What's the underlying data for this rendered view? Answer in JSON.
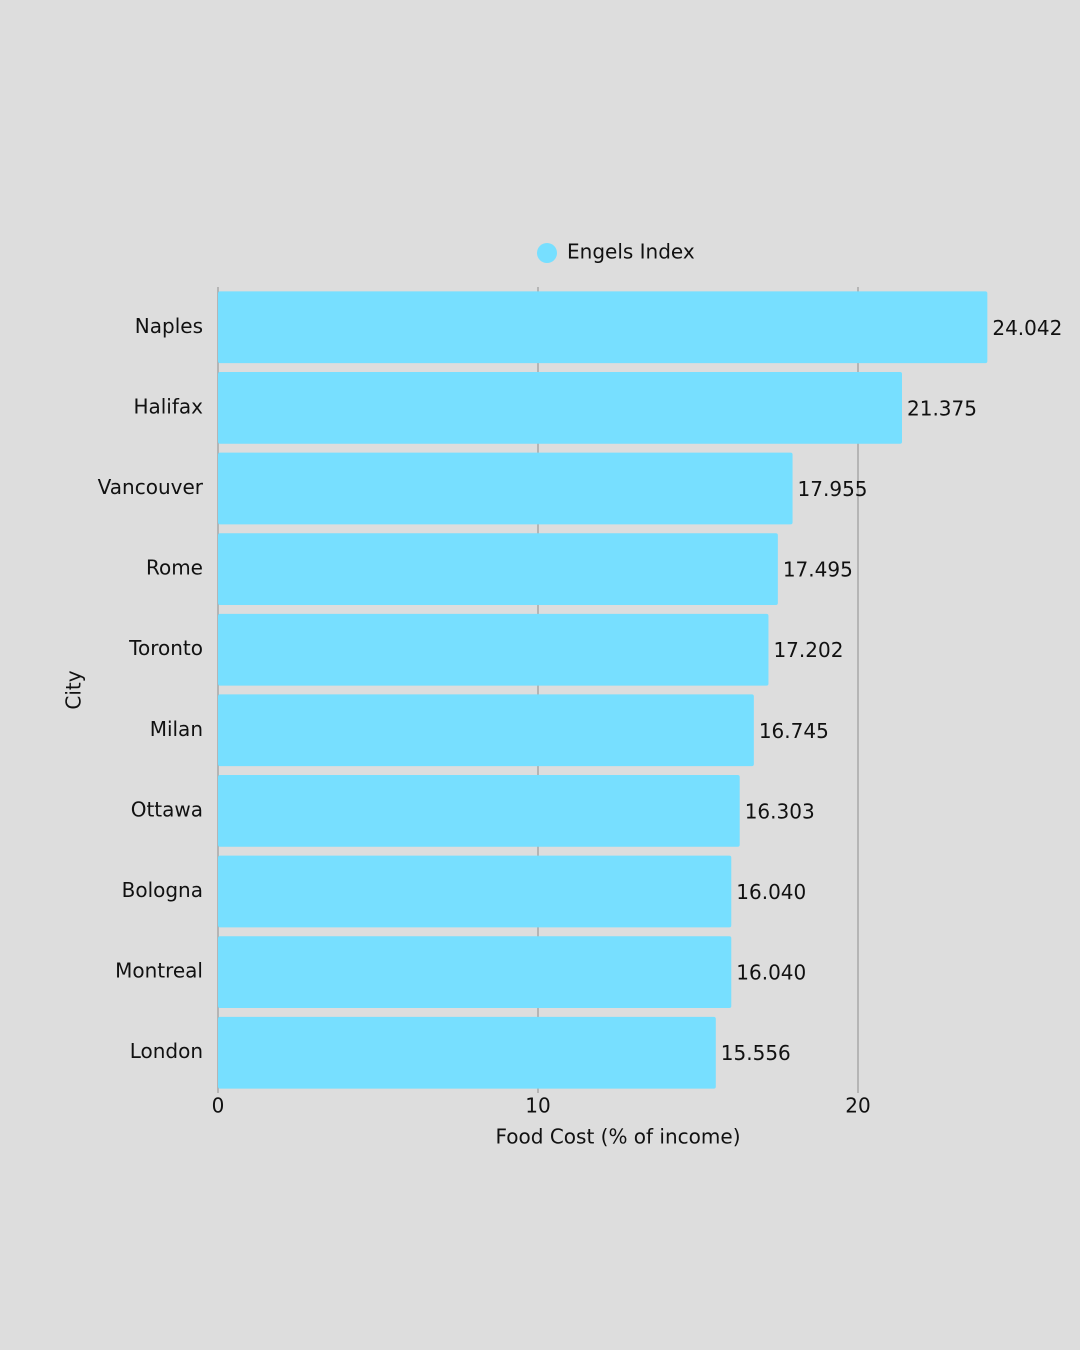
{
  "chart_data": {
    "type": "bar",
    "orientation": "horizontal",
    "x_label": "Food Cost (% of income)",
    "y_label": "City",
    "categories": [
      "Naples",
      "Halifax",
      "Vancouver",
      "Rome",
      "Toronto",
      "Milan",
      "Ottawa",
      "Bologna",
      "Montreal",
      "London"
    ],
    "series": [
      {
        "name": "Engels Index",
        "color": "#77dfff",
        "values": [
          24.042,
          21.375,
          17.955,
          17.495,
          17.202,
          16.745,
          16.303,
          16.04,
          16.04,
          15.556
        ],
        "value_labels": [
          "24.042",
          "21.375",
          "17.955",
          "17.495",
          "17.202",
          "16.745",
          "16.303",
          "16.040",
          "16.040",
          "15.556"
        ]
      }
    ],
    "xlim": [
      0,
      26.5
    ],
    "xticks": [
      0,
      10,
      20
    ],
    "grid": true,
    "legend": "top"
  }
}
